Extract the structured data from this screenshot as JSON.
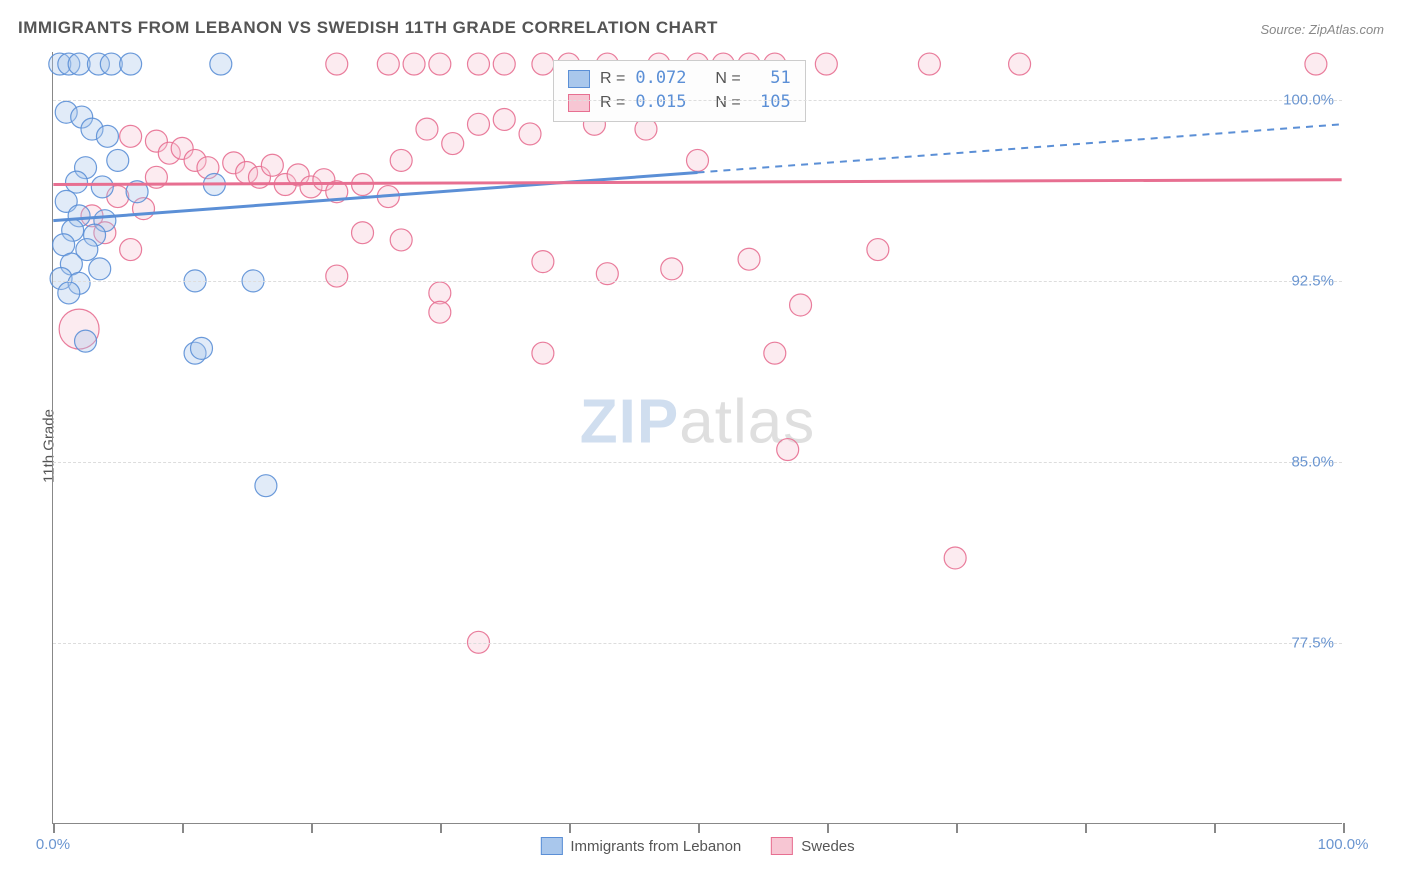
{
  "title": "IMMIGRANTS FROM LEBANON VS SWEDISH 11TH GRADE CORRELATION CHART",
  "source_label": "Source: ZipAtlas.com",
  "y_axis_label": "11th Grade",
  "watermark": {
    "part1": "ZIP",
    "part2": "atlas"
  },
  "chart": {
    "type": "scatter",
    "xlim": [
      0,
      100
    ],
    "ylim": [
      70,
      102
    ],
    "y_ticks": [
      {
        "value": 100.0,
        "label": "100.0%"
      },
      {
        "value": 92.5,
        "label": "92.5%"
      },
      {
        "value": 85.0,
        "label": "85.0%"
      },
      {
        "value": 77.5,
        "label": "77.5%"
      }
    ],
    "x_ticks": [
      0,
      10,
      20,
      30,
      40,
      50,
      60,
      70,
      80,
      90,
      100
    ],
    "x_tick_labels": {
      "min": "0.0%",
      "max": "100.0%"
    },
    "background_color": "#ffffff",
    "grid_color": "#dddddd",
    "tick_label_color": "#6a95d0",
    "axis_label_color": "#555555",
    "marker_radius": 11,
    "marker_opacity": 0.35,
    "marker_stroke_opacity": 0.9,
    "series": [
      {
        "id": "lebanon",
        "label": "Immigrants from Lebanon",
        "color_fill": "#a9c7ec",
        "color_stroke": "#5b8fd6",
        "R": "0.072",
        "N": "51",
        "trend": {
          "y_at_x0": 95.0,
          "y_at_x100": 99.0,
          "solid_until_x": 50
        },
        "points": [
          {
            "x": 0.5,
            "y": 101.5
          },
          {
            "x": 1.2,
            "y": 101.5
          },
          {
            "x": 2.0,
            "y": 101.5
          },
          {
            "x": 3.5,
            "y": 101.5
          },
          {
            "x": 4.5,
            "y": 101.5
          },
          {
            "x": 6.0,
            "y": 101.5
          },
          {
            "x": 13.0,
            "y": 101.5
          },
          {
            "x": 1.0,
            "y": 99.5
          },
          {
            "x": 2.2,
            "y": 99.3
          },
          {
            "x": 3.0,
            "y": 98.8
          },
          {
            "x": 4.2,
            "y": 98.5
          },
          {
            "x": 5.0,
            "y": 97.5
          },
          {
            "x": 2.5,
            "y": 97.2
          },
          {
            "x": 1.8,
            "y": 96.6
          },
          {
            "x": 3.8,
            "y": 96.4
          },
          {
            "x": 6.5,
            "y": 96.2
          },
          {
            "x": 1.0,
            "y": 95.8
          },
          {
            "x": 2.0,
            "y": 95.2
          },
          {
            "x": 4.0,
            "y": 95.0
          },
          {
            "x": 1.5,
            "y": 94.6
          },
          {
            "x": 3.2,
            "y": 94.4
          },
          {
            "x": 0.8,
            "y": 94.0
          },
          {
            "x": 2.6,
            "y": 93.8
          },
          {
            "x": 1.4,
            "y": 93.2
          },
          {
            "x": 3.6,
            "y": 93.0
          },
          {
            "x": 0.6,
            "y": 92.6
          },
          {
            "x": 2.0,
            "y": 92.4
          },
          {
            "x": 1.2,
            "y": 92.0
          },
          {
            "x": 12.5,
            "y": 96.5
          },
          {
            "x": 11.0,
            "y": 92.5
          },
          {
            "x": 15.5,
            "y": 92.5
          },
          {
            "x": 11.0,
            "y": 89.5
          },
          {
            "x": 11.5,
            "y": 89.7
          },
          {
            "x": 2.5,
            "y": 90.0
          },
          {
            "x": 16.5,
            "y": 84.0
          }
        ]
      },
      {
        "id": "swedes",
        "label": "Swedes",
        "color_fill": "#f7c6d3",
        "color_stroke": "#e76f91",
        "R": "0.015",
        "N": "105",
        "trend": {
          "y_at_x0": 96.5,
          "y_at_x100": 96.7,
          "solid_until_x": 100
        },
        "points": [
          {
            "x": 2,
            "y": 90.5,
            "r": 20
          },
          {
            "x": 22,
            "y": 101.5
          },
          {
            "x": 26,
            "y": 101.5
          },
          {
            "x": 28,
            "y": 101.5
          },
          {
            "x": 30,
            "y": 101.5
          },
          {
            "x": 33,
            "y": 101.5
          },
          {
            "x": 35,
            "y": 101.5
          },
          {
            "x": 38,
            "y": 101.5
          },
          {
            "x": 40,
            "y": 101.5
          },
          {
            "x": 43,
            "y": 101.5
          },
          {
            "x": 47,
            "y": 101.5
          },
          {
            "x": 50,
            "y": 101.5
          },
          {
            "x": 52,
            "y": 101.5
          },
          {
            "x": 54,
            "y": 101.5
          },
          {
            "x": 56,
            "y": 101.5
          },
          {
            "x": 60,
            "y": 101.5
          },
          {
            "x": 68,
            "y": 101.5
          },
          {
            "x": 75,
            "y": 101.5
          },
          {
            "x": 98,
            "y": 101.5
          },
          {
            "x": 6,
            "y": 98.5
          },
          {
            "x": 8,
            "y": 98.3
          },
          {
            "x": 9,
            "y": 97.8
          },
          {
            "x": 10,
            "y": 98.0
          },
          {
            "x": 11,
            "y": 97.5
          },
          {
            "x": 12,
            "y": 97.2
          },
          {
            "x": 14,
            "y": 97.4
          },
          {
            "x": 15,
            "y": 97.0
          },
          {
            "x": 16,
            "y": 96.8
          },
          {
            "x": 17,
            "y": 97.3
          },
          {
            "x": 18,
            "y": 96.5
          },
          {
            "x": 19,
            "y": 96.9
          },
          {
            "x": 20,
            "y": 96.4
          },
          {
            "x": 21,
            "y": 96.7
          },
          {
            "x": 22,
            "y": 96.2
          },
          {
            "x": 24,
            "y": 96.5
          },
          {
            "x": 26,
            "y": 96.0
          },
          {
            "x": 27,
            "y": 97.5
          },
          {
            "x": 29,
            "y": 98.8
          },
          {
            "x": 31,
            "y": 98.2
          },
          {
            "x": 33,
            "y": 99.0
          },
          {
            "x": 35,
            "y": 99.2
          },
          {
            "x": 37,
            "y": 98.6
          },
          {
            "x": 42,
            "y": 99.0
          },
          {
            "x": 46,
            "y": 98.8
          },
          {
            "x": 50,
            "y": 97.5
          },
          {
            "x": 24,
            "y": 94.5
          },
          {
            "x": 27,
            "y": 94.2
          },
          {
            "x": 22,
            "y": 92.7
          },
          {
            "x": 30,
            "y": 92.0
          },
          {
            "x": 38,
            "y": 93.3
          },
          {
            "x": 43,
            "y": 92.8
          },
          {
            "x": 48,
            "y": 93.0
          },
          {
            "x": 54,
            "y": 93.4
          },
          {
            "x": 58,
            "y": 91.5
          },
          {
            "x": 64,
            "y": 93.8
          },
          {
            "x": 30,
            "y": 91.2
          },
          {
            "x": 38,
            "y": 89.5
          },
          {
            "x": 56,
            "y": 89.5
          },
          {
            "x": 57,
            "y": 85.5
          },
          {
            "x": 70,
            "y": 81.0
          },
          {
            "x": 33,
            "y": 77.5
          },
          {
            "x": 5,
            "y": 96.0
          },
          {
            "x": 3,
            "y": 95.2
          },
          {
            "x": 4,
            "y": 94.5
          },
          {
            "x": 6,
            "y": 93.8
          },
          {
            "x": 7,
            "y": 95.5
          },
          {
            "x": 8,
            "y": 96.8
          }
        ]
      }
    ],
    "legend_box": {
      "rows": [
        {
          "series_id": "lebanon",
          "r_label": "R =",
          "n_label": "N ="
        },
        {
          "series_id": "swedes",
          "r_label": "R =",
          "n_label": "N ="
        }
      ]
    },
    "bottom_legend": [
      {
        "series_id": "lebanon"
      },
      {
        "series_id": "swedes"
      }
    ]
  }
}
